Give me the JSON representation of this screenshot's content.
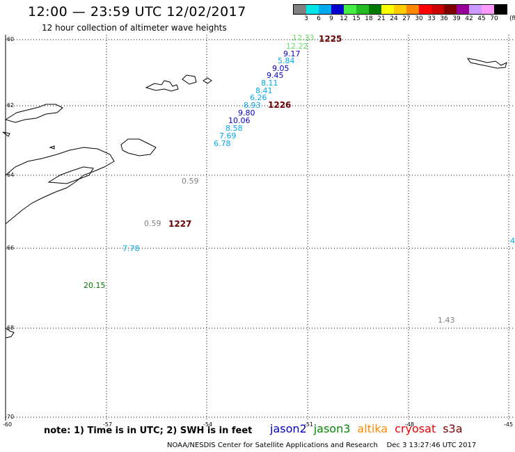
{
  "header": {
    "title": "12:00 — 23:59 UTC 12/02/2017",
    "subtitle": "12 hour collection of altimeter wave heights"
  },
  "scale": {
    "unit": "(ft)",
    "colors": [
      "#808080",
      "#00e5e5",
      "#00aaee",
      "#0000cc",
      "#44ee44",
      "#22bb22",
      "#007700",
      "#ffff00",
      "#ffcc00",
      "#ff8800",
      "#ff0000",
      "#cc0000",
      "#800000",
      "#990099",
      "#cc99ff",
      "#ff99ff",
      "#000000"
    ],
    "labels": [
      "3",
      "6",
      "9",
      "12",
      "15",
      "18",
      "21",
      "24",
      "27",
      "30",
      "33",
      "36",
      "39",
      "42",
      "45",
      "70"
    ]
  },
  "axes": {
    "lat_labels": [
      "-60",
      "-62",
      "-64",
      "-66",
      "-68",
      "-70"
    ],
    "lon_labels": [
      "-60",
      "-57",
      "-54",
      "-51",
      "-48",
      "-45"
    ]
  },
  "passes": [
    "1225",
    "1226",
    "1227"
  ],
  "wave_heights": [
    {
      "value": "12.33",
      "color": "#66dd66"
    },
    {
      "value": "12.22",
      "color": "#66dd66"
    },
    {
      "value": "9.17",
      "color": "#0000cc"
    },
    {
      "value": "5.84",
      "color": "#00aaee"
    },
    {
      "value": "9.05",
      "color": "#0000cc"
    },
    {
      "value": "9.45",
      "color": "#0000cc"
    },
    {
      "value": "8.11",
      "color": "#00aaee"
    },
    {
      "value": "8.41",
      "color": "#00aaee"
    },
    {
      "value": "6.26",
      "color": "#00aaee"
    },
    {
      "value": "8.93",
      "color": "#00aaee"
    },
    {
      "value": "9.80",
      "color": "#0000cc"
    },
    {
      "value": "10.06",
      "color": "#0000cc"
    },
    {
      "value": "8.58",
      "color": "#00aaee"
    },
    {
      "value": "7.69",
      "color": "#00aaee"
    },
    {
      "value": "6.78",
      "color": "#00aaee"
    },
    {
      "value": "0.59",
      "color": "#808080"
    },
    {
      "value": "0.59",
      "color": "#808080"
    },
    {
      "value": "7.78",
      "color": "#00aaee"
    },
    {
      "value": "20.15",
      "color": "#007700"
    },
    {
      "value": "1.43",
      "color": "#808080"
    },
    {
      "value": "4",
      "color": "#00aaee"
    }
  ],
  "footer": {
    "note": "note: 1) Time is in UTC; 2) SWH is in feet",
    "satellites": [
      {
        "name": "jason2",
        "color": "#0000cc"
      },
      {
        "name": "jason3",
        "color": "#008800"
      },
      {
        "name": "altika",
        "color": "#ff8800"
      },
      {
        "name": "cryosat",
        "color": "#ee0000"
      },
      {
        "name": "s3a",
        "color": "#800000"
      }
    ],
    "credit": "NOAA/NESDIS Center for Satellite Applications and Research",
    "timestamp": "Dec  3 13:27:46 UTC 2017"
  }
}
